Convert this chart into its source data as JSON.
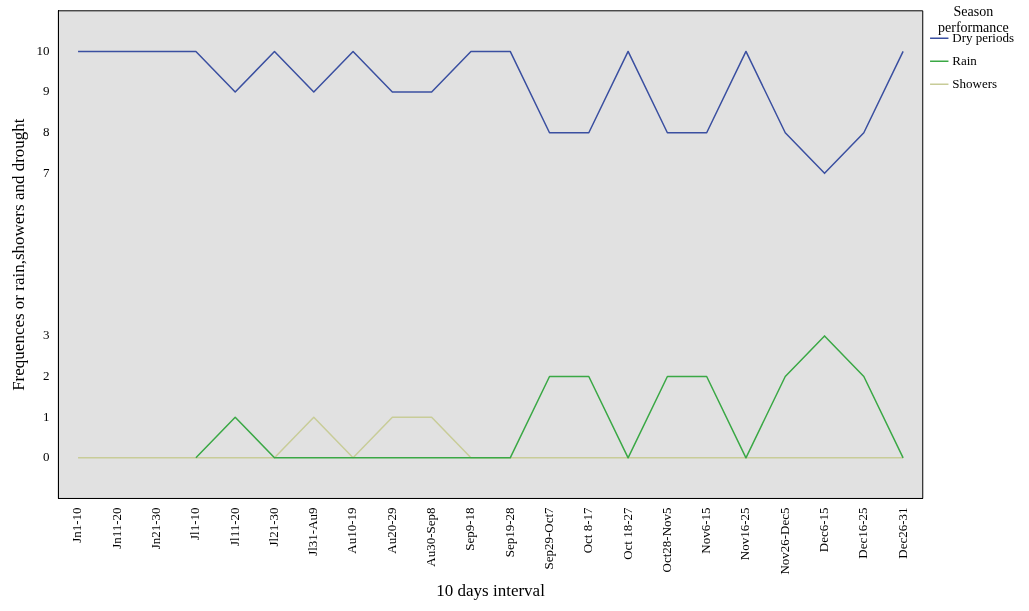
{
  "chart_data": {
    "type": "line",
    "xlabel": "10 days interval",
    "ylabel": "Frequences or rain,showers and drought",
    "legend_title": "Season performance",
    "categories": [
      "Jn1-10",
      "Jn11-20",
      "Jn21-30",
      "Jl1-10",
      "Jl11-20",
      "Jl21-30",
      "Jl31-Au9",
      "Au10-19",
      "Au20-29",
      "Au30-Sep8",
      "Sep9-18",
      "Sep19-28",
      "Sep29-Oct7",
      "Oct 8-17",
      "Oct 18-27",
      "Oct28-Nov5",
      "Nov6-15",
      "Nov16-25",
      "Nov26-Dec5",
      "Dec6-15",
      "Dec16-25",
      "Dec26-31"
    ],
    "series": [
      {
        "name": "Dry periods",
        "color": "#3a4fa0",
        "values": [
          10,
          10,
          10,
          10,
          9,
          10,
          9,
          10,
          9,
          9,
          10,
          10,
          8,
          8,
          10,
          8,
          8,
          10,
          8,
          7,
          8,
          10
        ]
      },
      {
        "name": "Rain",
        "color": "#3aa845",
        "values": [
          null,
          null,
          null,
          0,
          1,
          0,
          0,
          0,
          0,
          0,
          0,
          0,
          2,
          2,
          0,
          2,
          2,
          0,
          2,
          3,
          2,
          0
        ]
      },
      {
        "name": "Showers",
        "color": "#c8cc98",
        "values": [
          0,
          0,
          0,
          0,
          0,
          0,
          1,
          0,
          1,
          1,
          0,
          0,
          0,
          0,
          0,
          0,
          0,
          0,
          0,
          0,
          0,
          0
        ]
      }
    ],
    "ylim": [
      -1,
      11
    ],
    "yticks": [
      0,
      1,
      2,
      3,
      7,
      8,
      9,
      10
    ],
    "grid": false,
    "legend": "top right",
    "marker": "none",
    "line_style": "solid"
  }
}
